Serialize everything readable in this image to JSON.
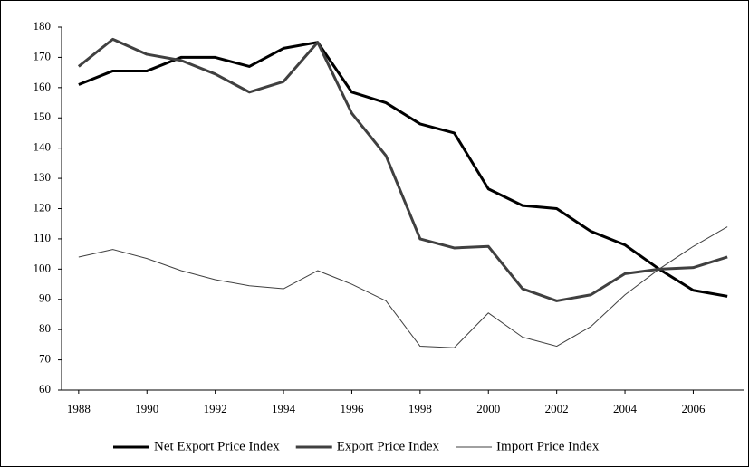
{
  "chart_data": {
    "type": "line",
    "x": [
      1988,
      1989,
      1990,
      1991,
      1992,
      1993,
      1994,
      1995,
      1996,
      1997,
      1998,
      1999,
      2000,
      2001,
      2002,
      2003,
      2004,
      2005,
      2006,
      2007
    ],
    "series": [
      {
        "name": "Net Export Price Index",
        "color": "#000000",
        "width": 3,
        "values": [
          161,
          165.5,
          165.5,
          170,
          170,
          167,
          173,
          175,
          158.5,
          155,
          148,
          145,
          126.5,
          121,
          120,
          112.5,
          108,
          100,
          93,
          91
        ]
      },
      {
        "name": "Export Price Index",
        "color": "#404040",
        "width": 3,
        "values": [
          167,
          176,
          171,
          169,
          164.5,
          158.5,
          162,
          175,
          151.5,
          137.5,
          110,
          107,
          107.5,
          93.5,
          89.5,
          91.5,
          98.5,
          100,
          100.5,
          104
        ]
      },
      {
        "name": "Import Price Index",
        "color": "#404040",
        "width": 1,
        "values": [
          104,
          106.5,
          103.5,
          99.5,
          96.5,
          94.5,
          93.5,
          99.5,
          95,
          89.5,
          74.5,
          74,
          85.5,
          77.5,
          74.5,
          81,
          91.5,
          100,
          107.5,
          114
        ]
      }
    ],
    "xlim": [
      1987.5,
      2007.5
    ],
    "xticks": [
      1988,
      1990,
      1992,
      1994,
      1996,
      1998,
      2000,
      2002,
      2004,
      2006
    ],
    "ylim": [
      60,
      180
    ],
    "yticks": [
      60,
      70,
      80,
      90,
      100,
      110,
      120,
      130,
      140,
      150,
      160,
      170,
      180
    ],
    "grid": false,
    "legend": "bottom"
  }
}
